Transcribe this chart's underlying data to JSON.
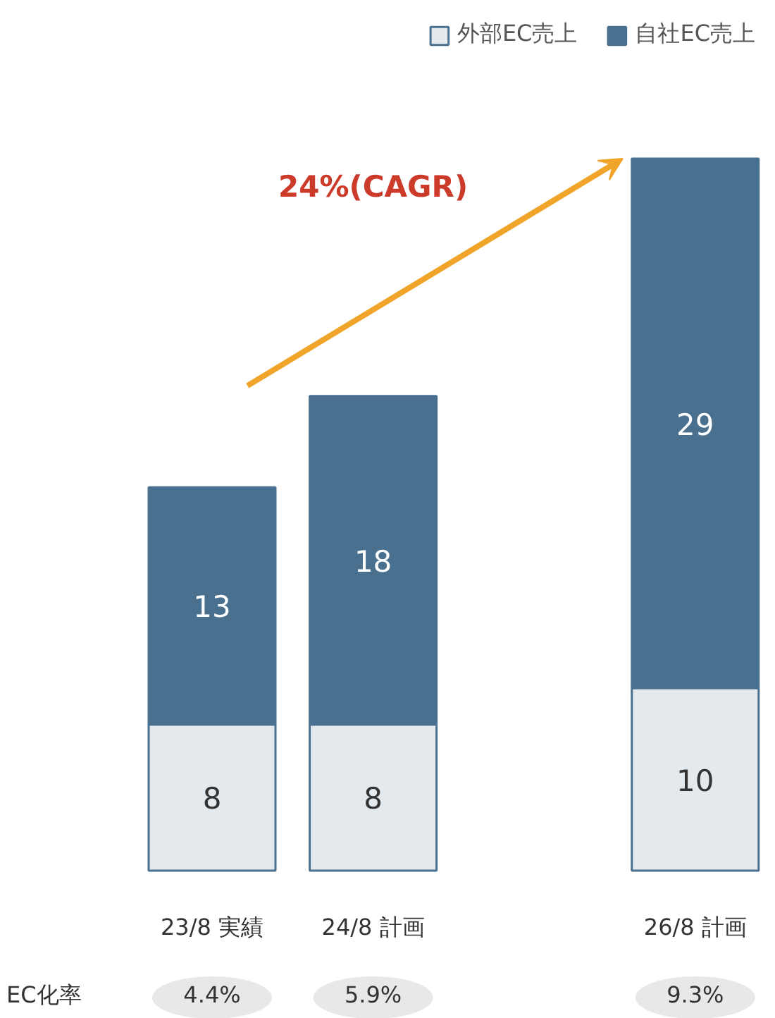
{
  "chart_data": {
    "type": "bar",
    "stacked": true,
    "categories": [
      "23/8 実績",
      "24/8 計画",
      null,
      "26/8 計画"
    ],
    "series": [
      {
        "name": "外部EC売上",
        "color": "#e4e9ee",
        "values": [
          8,
          8,
          null,
          10
        ]
      },
      {
        "name": "自社EC売上",
        "color": "#4a7090",
        "values": [
          13,
          18,
          null,
          29
        ]
      }
    ],
    "data_labels": true,
    "legend": "top right",
    "annotations": [
      "24%(CAGR)",
      "EC化率",
      "4.4%",
      "5.9%",
      "9.3%"
    ]
  }
}
